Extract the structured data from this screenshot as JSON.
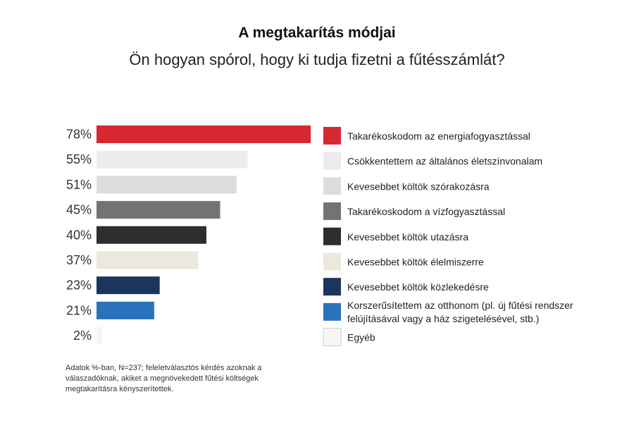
{
  "title": "A megtakarítás módjai",
  "subtitle": "Ön hogyan spórol, hogy ki tudja fizetni a fűtésszámlát?",
  "note": "Adatok %-ban, N=237; feleletválasztós kérdés azoknak a válaszadóknak, akiket a megnövekedett fűtési költségek megtakarításra kényszerítettek.",
  "chart_data": {
    "type": "bar",
    "orientation": "horizontal",
    "value_suffix": "%",
    "xlim": [
      0,
      100
    ],
    "grid": false,
    "legend_position": "right",
    "categories": [
      "Takarékoskodom az energiafogyasztással",
      "Csökkentettem az általános életszínvonalam",
      "Kevesebbet költök szórakozásra",
      "Takarékoskodom a vízfogyasztással",
      "Kevesebbet költök utazásra",
      "Kevesebbet költök élelmiszerre",
      "Kevesebbet költök közlekedésre",
      "Korszerűsítettem az otthonom (pl. új fűtési rendszer felújításával vagy a ház szigetelésével, stb.)",
      "Egyéb"
    ],
    "legend_lines": [
      [
        "Takarékoskodom az energiafogyasztással"
      ],
      [
        "Csökkentettem az általános életszínvonalam"
      ],
      [
        "Kevesebbet költök szórakozásra"
      ],
      [
        "Takarékoskodom a vízfogyasztással"
      ],
      [
        "Kevesebbet költök utazásra"
      ],
      [
        "Kevesebbet költök élelmiszerre"
      ],
      [
        "Kevesebbet költök közlekedésre"
      ],
      [
        "Korszerűsítettem az otthonom (pl. új fűtési rendszer",
        "felújításával vagy a ház szigetelésével, stb.)"
      ],
      [
        "Egyéb"
      ]
    ],
    "values": [
      78,
      55,
      51,
      45,
      40,
      37,
      23,
      21,
      2
    ],
    "colors": [
      "#d62832",
      "#ececec",
      "#dcdcdc",
      "#737373",
      "#2e2e2e",
      "#ebe9dc",
      "#1b365d",
      "#2a72bb",
      "#f6f6f6"
    ]
  }
}
